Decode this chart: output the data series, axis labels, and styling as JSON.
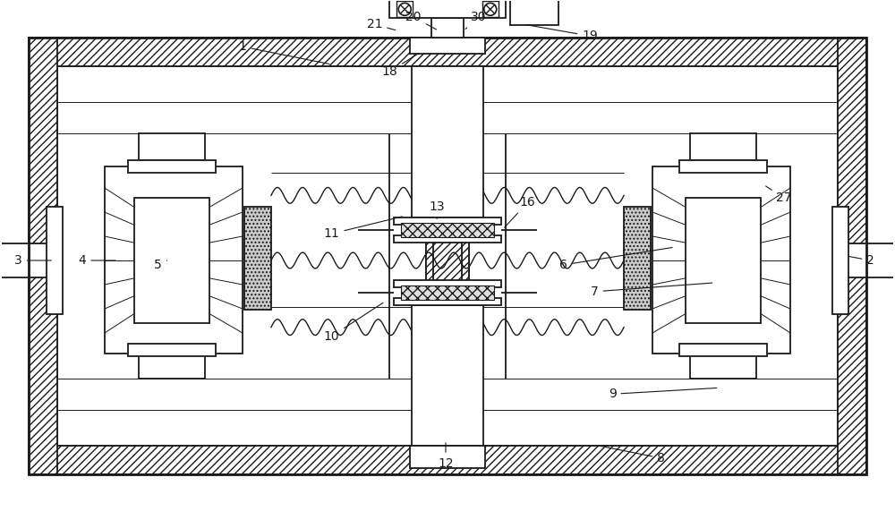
{
  "bg_color": "#ffffff",
  "line_color": "#1a1a1a",
  "label_fontsize": 10,
  "fig_width": 10.0,
  "fig_height": 5.81
}
